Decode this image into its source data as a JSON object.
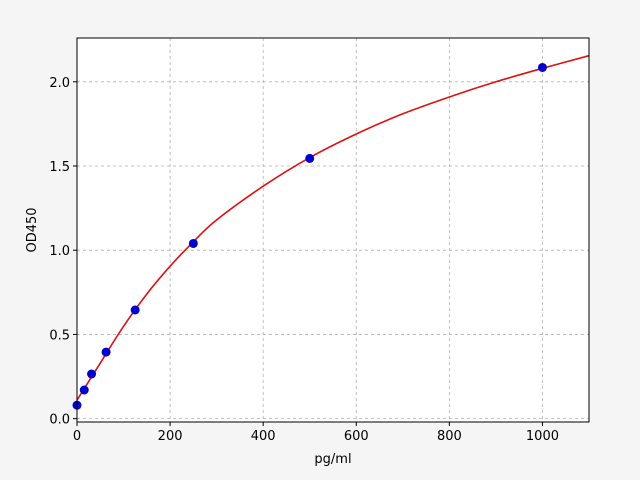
{
  "chart_data": {
    "type": "scatter",
    "title": "",
    "xlabel": "pg/ml",
    "ylabel": "OD450",
    "xlim": [
      0,
      1100
    ],
    "ylim": [
      -0.02,
      2.26
    ],
    "xticks": [
      0,
      200,
      400,
      600,
      800,
      1000
    ],
    "xtick_labels": [
      "0",
      "200",
      "400",
      "600",
      "800",
      "1000"
    ],
    "yticks": [
      0.0,
      0.5,
      1.0,
      1.5,
      2.0
    ],
    "ytick_labels": [
      "0.0",
      "0.5",
      "1.0",
      "1.5",
      "2.0"
    ],
    "grid": true,
    "points": {
      "x": [
        0,
        15.6,
        31.25,
        62.5,
        125,
        250,
        500,
        1000
      ],
      "y": [
        0.08,
        0.17,
        0.265,
        0.395,
        0.645,
        1.04,
        1.545,
        2.085
      ],
      "color": "#0000cc"
    },
    "fit_curve": {
      "x": [
        0,
        50,
        100,
        150,
        200,
        250,
        300,
        400,
        500,
        600,
        700,
        800,
        900,
        1000,
        1100
      ],
      "y": [
        0.11,
        0.33,
        0.548,
        0.74,
        0.905,
        1.05,
        1.18,
        1.38,
        1.55,
        1.69,
        1.81,
        1.91,
        2.0,
        2.08,
        2.155
      ],
      "color": "#dd1111"
    }
  }
}
